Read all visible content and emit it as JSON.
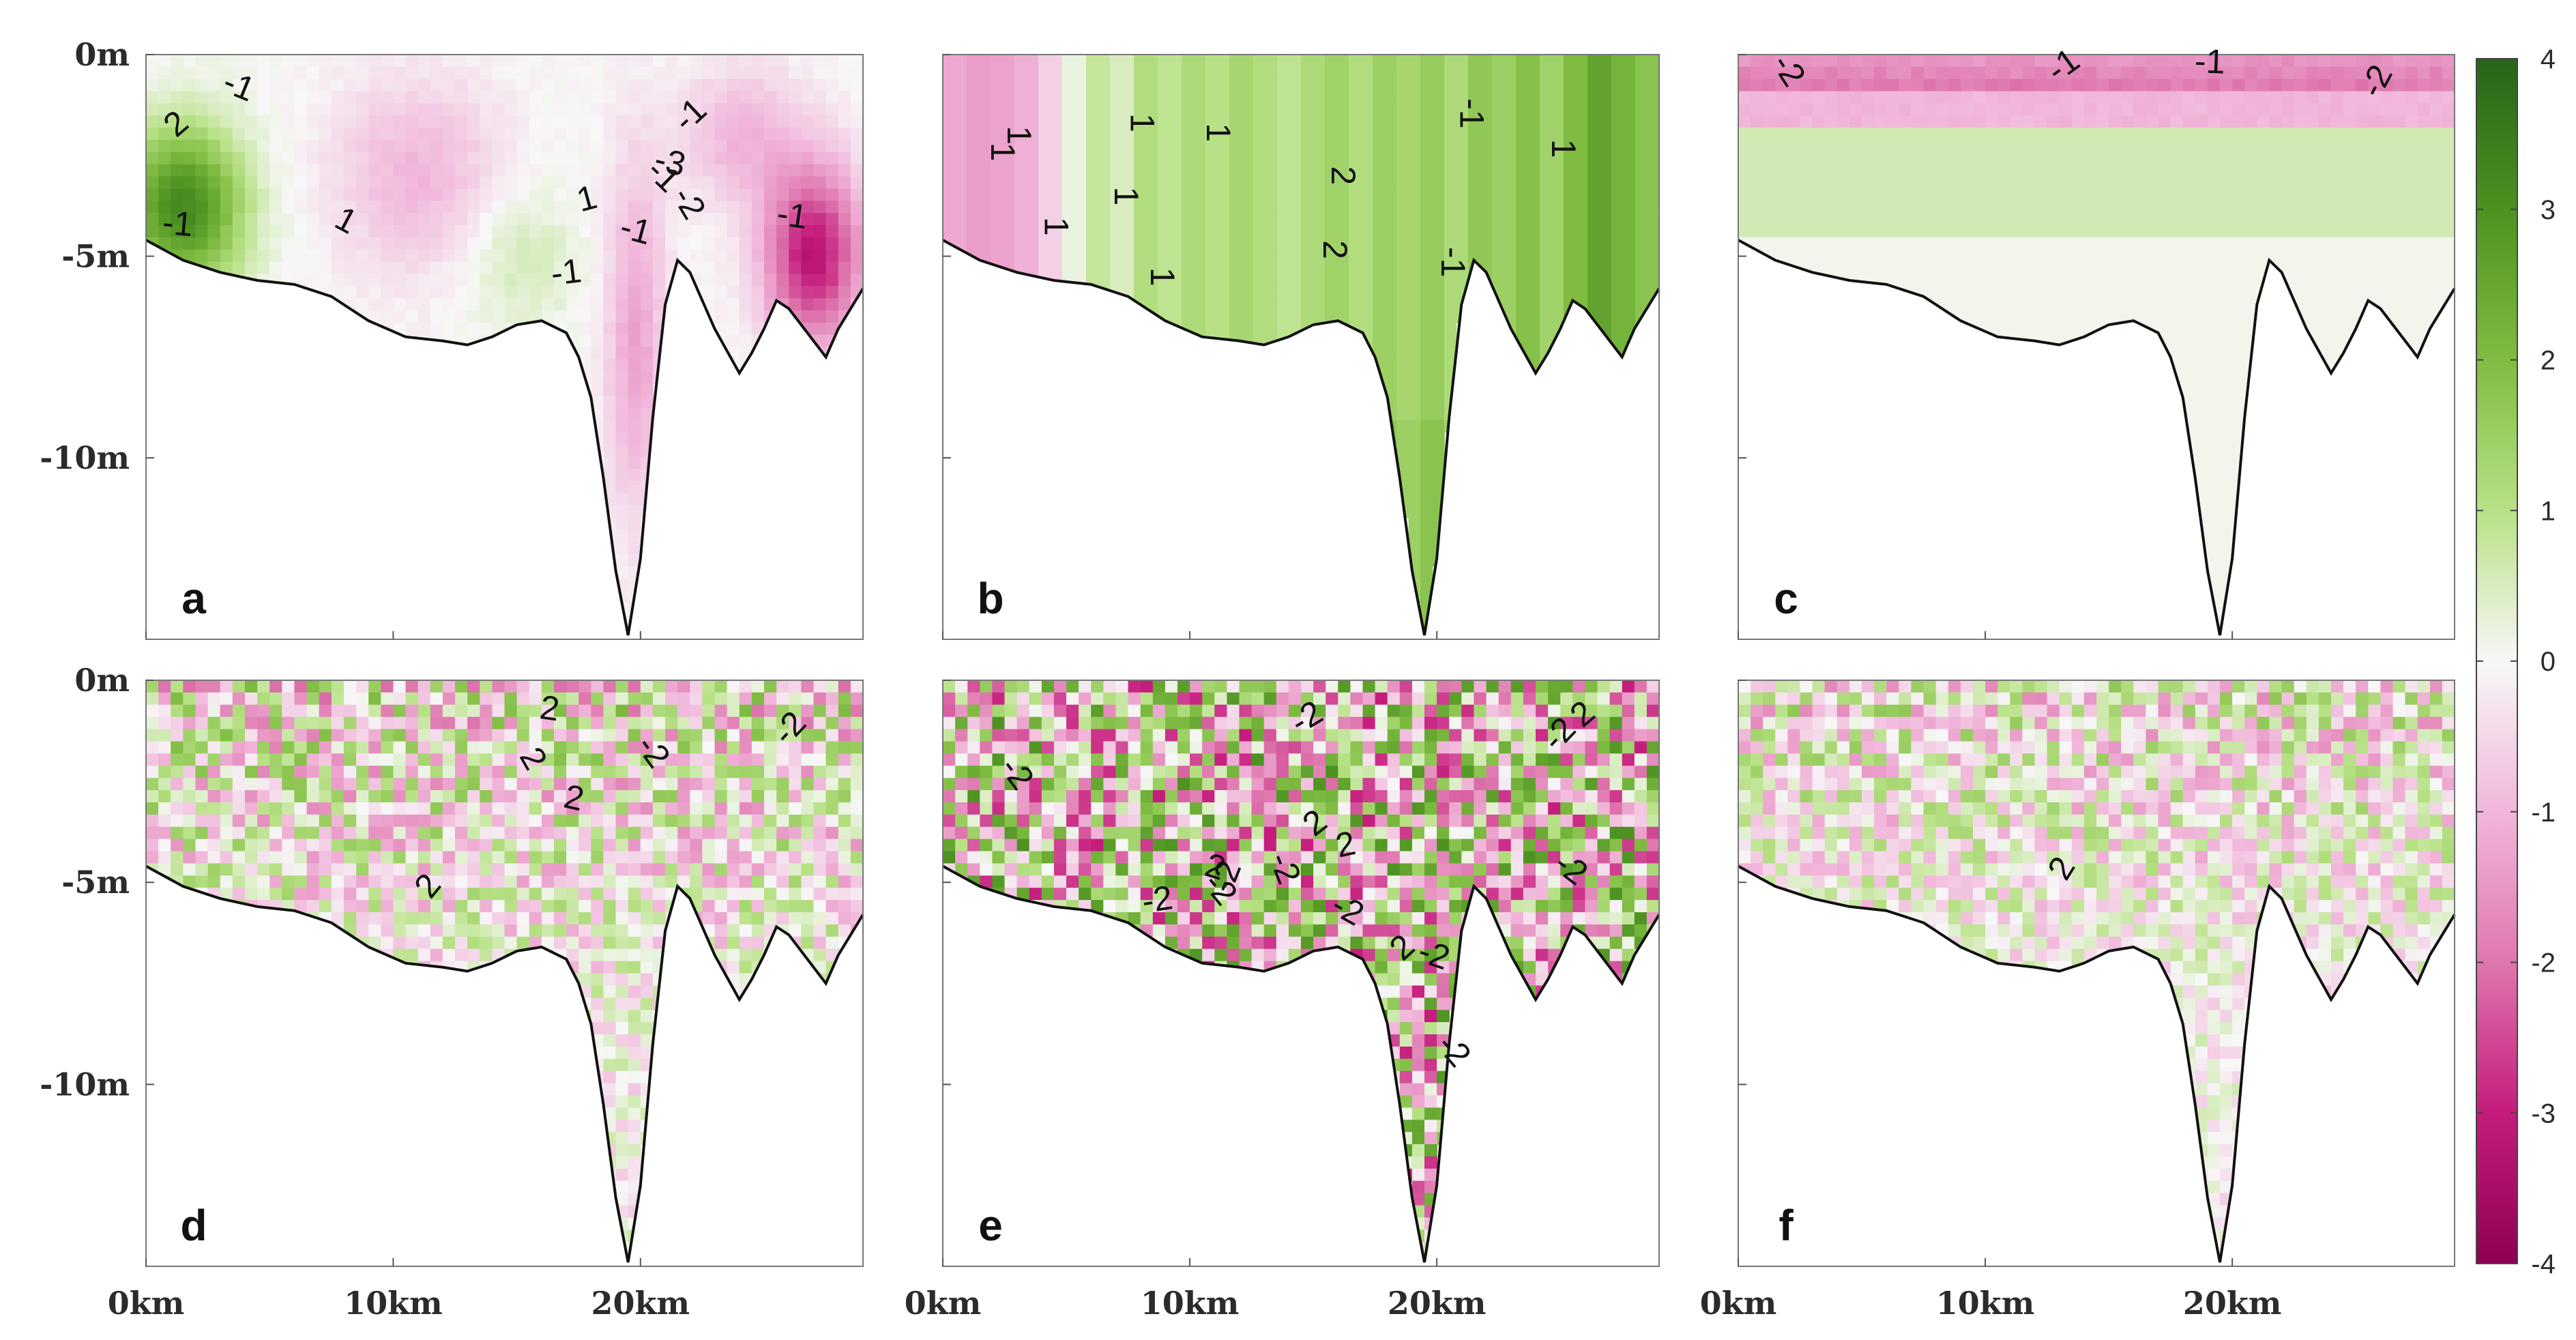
{
  "chart_data": {
    "type": "heatmap",
    "description_layout": "2x3 grid of depth sections with shared colorbar",
    "x_axis": {
      "ticks": [
        "0km",
        "10km",
        "20km"
      ],
      "tick_values": [
        0,
        10,
        20
      ],
      "range": [
        0,
        29
      ]
    },
    "y_axis": {
      "ticks": [
        "0m",
        "-5m",
        "-10m"
      ],
      "tick_values": [
        0,
        -5,
        -10
      ],
      "range": [
        -14.5,
        0
      ]
    },
    "bathymetry": {
      "x": [
        0,
        1.5,
        3,
        4.5,
        6,
        7.5,
        9,
        10.5,
        12,
        13,
        14,
        15,
        16,
        17,
        17.5,
        18,
        18.5,
        19,
        19.5,
        20,
        20.5,
        21,
        21.5,
        22,
        23,
        24,
        24.5,
        25,
        25.5,
        26,
        27,
        27.5,
        28,
        29
      ],
      "depth": [
        -4.6,
        -5.1,
        -5.4,
        -5.6,
        -5.7,
        -6.0,
        -6.6,
        -7.0,
        -7.1,
        -7.2,
        -7.0,
        -6.7,
        -6.6,
        -6.9,
        -7.5,
        -8.5,
        -10.5,
        -12.8,
        -14.4,
        -12.5,
        -9.0,
        -6.2,
        -5.1,
        -5.4,
        -6.8,
        -7.9,
        -7.4,
        -6.8,
        -6.1,
        -6.3,
        -7.1,
        -7.5,
        -6.8,
        -5.8
      ]
    },
    "colorbar": {
      "range": [
        -4,
        4
      ],
      "ticks": [
        "4",
        "3",
        "2",
        "1",
        "0",
        "-1",
        "-2",
        "-3",
        "-4"
      ],
      "colormap": {
        "neg": "#8e0152",
        "mid": "#f7f7f7",
        "pos": "#276419"
      }
    },
    "panels": [
      {
        "id": "a",
        "letter": "a",
        "pattern": "mixed-smooth",
        "contour_labels": [
          "1",
          "2",
          "-1",
          "-1",
          "-1",
          "-1",
          "-2",
          "-3",
          "-1",
          "-1",
          "1",
          "-1"
        ]
      },
      {
        "id": "b",
        "letter": "b",
        "pattern": "vertical-stripes",
        "stripe_values": [
          -1.2,
          -1.4,
          -1.3,
          -1.1,
          -0.6,
          0.2,
          0.8,
          0.5,
          1.1,
          0.9,
          1.2,
          1.0,
          1.3,
          1.1,
          0.9,
          1.2,
          1.4,
          1.1,
          1.5,
          1.3,
          1.6,
          1.2,
          1.7,
          1.5,
          1.9,
          1.4,
          2.0,
          2.6,
          2.2,
          1.8
        ],
        "contour_labels": [
          "-1",
          "1",
          "1",
          "1",
          "1",
          "-1",
          "2",
          "1",
          "1",
          "1",
          "1",
          "2"
        ]
      },
      {
        "id": "c",
        "letter": "c",
        "pattern": "surface-layer",
        "contour_labels": [
          "-1",
          "-2",
          "-2",
          "-1"
        ]
      },
      {
        "id": "d",
        "letter": "d",
        "pattern": "noisy",
        "contour_labels": [
          "2",
          "2",
          "-2",
          "2",
          "-2",
          "2"
        ]
      },
      {
        "id": "e",
        "letter": "e",
        "pattern": "noisy-strong",
        "contour_labels": [
          "2",
          "-2",
          "-2",
          "-2",
          "-2",
          "-2",
          "2",
          "-2",
          "2",
          "-2",
          "-2",
          "2",
          "-2",
          "2",
          "-2",
          "-2"
        ]
      },
      {
        "id": "f",
        "letter": "f",
        "pattern": "noisy-weak",
        "contour_labels": [
          "2"
        ]
      }
    ]
  }
}
